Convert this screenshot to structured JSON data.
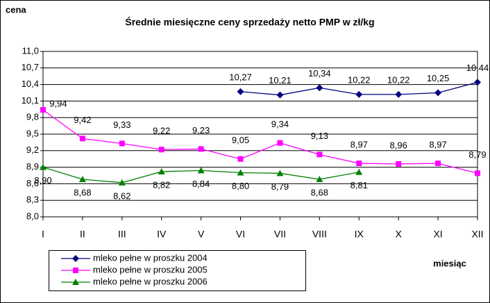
{
  "chart_data": {
    "type": "line",
    "title": "Średnie miesięczne ceny sprzedaży netto PMP w zł/kg",
    "y_label": "cena",
    "x_label": "miesiąc",
    "categories": [
      "I",
      "II",
      "III",
      "IV",
      "V",
      "VI",
      "VII",
      "VIII",
      "IX",
      "X",
      "XI",
      "XII"
    ],
    "series": [
      {
        "name": "mleko pełne w  proszku 2004",
        "color": "#000080",
        "marker": "diamond",
        "values": [
          null,
          null,
          null,
          null,
          null,
          10.27,
          10.21,
          10.34,
          10.22,
          10.22,
          10.25,
          10.44
        ],
        "value_labels": [
          null,
          null,
          null,
          null,
          null,
          "10,27",
          "10,21",
          "10,34",
          "10,22",
          "10,22",
          "10,25",
          "10,44"
        ]
      },
      {
        "name": "mleko pełne w  proszku 2005",
        "color": "#ff00ff",
        "marker": "square",
        "values": [
          9.94,
          9.42,
          9.33,
          9.22,
          9.23,
          9.05,
          9.34,
          9.13,
          8.97,
          8.96,
          8.97,
          8.79
        ],
        "value_labels": [
          "9,94",
          "9,42",
          "9,33",
          "9,22",
          "9,23",
          "9,05",
          "9,34",
          "9,13",
          "8,97",
          "8,96",
          "8,97",
          "8,79"
        ]
      },
      {
        "name": "mleko pełne w  proszku 2006",
        "color": "#008000",
        "marker": "triangle",
        "values": [
          8.9,
          8.68,
          8.62,
          8.82,
          8.84,
          8.8,
          8.79,
          8.68,
          8.81,
          null,
          null,
          null
        ],
        "value_labels": [
          "8,90",
          "8,68",
          "8,62",
          "8,82",
          "8,84",
          "8,80",
          "8,79",
          "8,68",
          "8,81",
          null,
          null,
          null
        ]
      }
    ],
    "ylim": [
      8.0,
      11.0
    ],
    "yticks": [
      {
        "value": 8.0,
        "label": "8,0"
      },
      {
        "value": 8.3,
        "label": "8,3"
      },
      {
        "value": 8.6,
        "label": "8,6"
      },
      {
        "value": 8.9,
        "label": "8,9"
      },
      {
        "value": 9.2,
        "label": "9,2"
      },
      {
        "value": 9.5,
        "label": "9,5"
      },
      {
        "value": 9.8,
        "label": "9,8"
      },
      {
        "value": 10.1,
        "label": "10,1"
      },
      {
        "value": 10.4,
        "label": "10,4"
      },
      {
        "value": 10.7,
        "label": "10,7"
      },
      {
        "value": 11.0,
        "label": "11,0"
      }
    ],
    "grid": true,
    "legend": "bottom-left"
  }
}
